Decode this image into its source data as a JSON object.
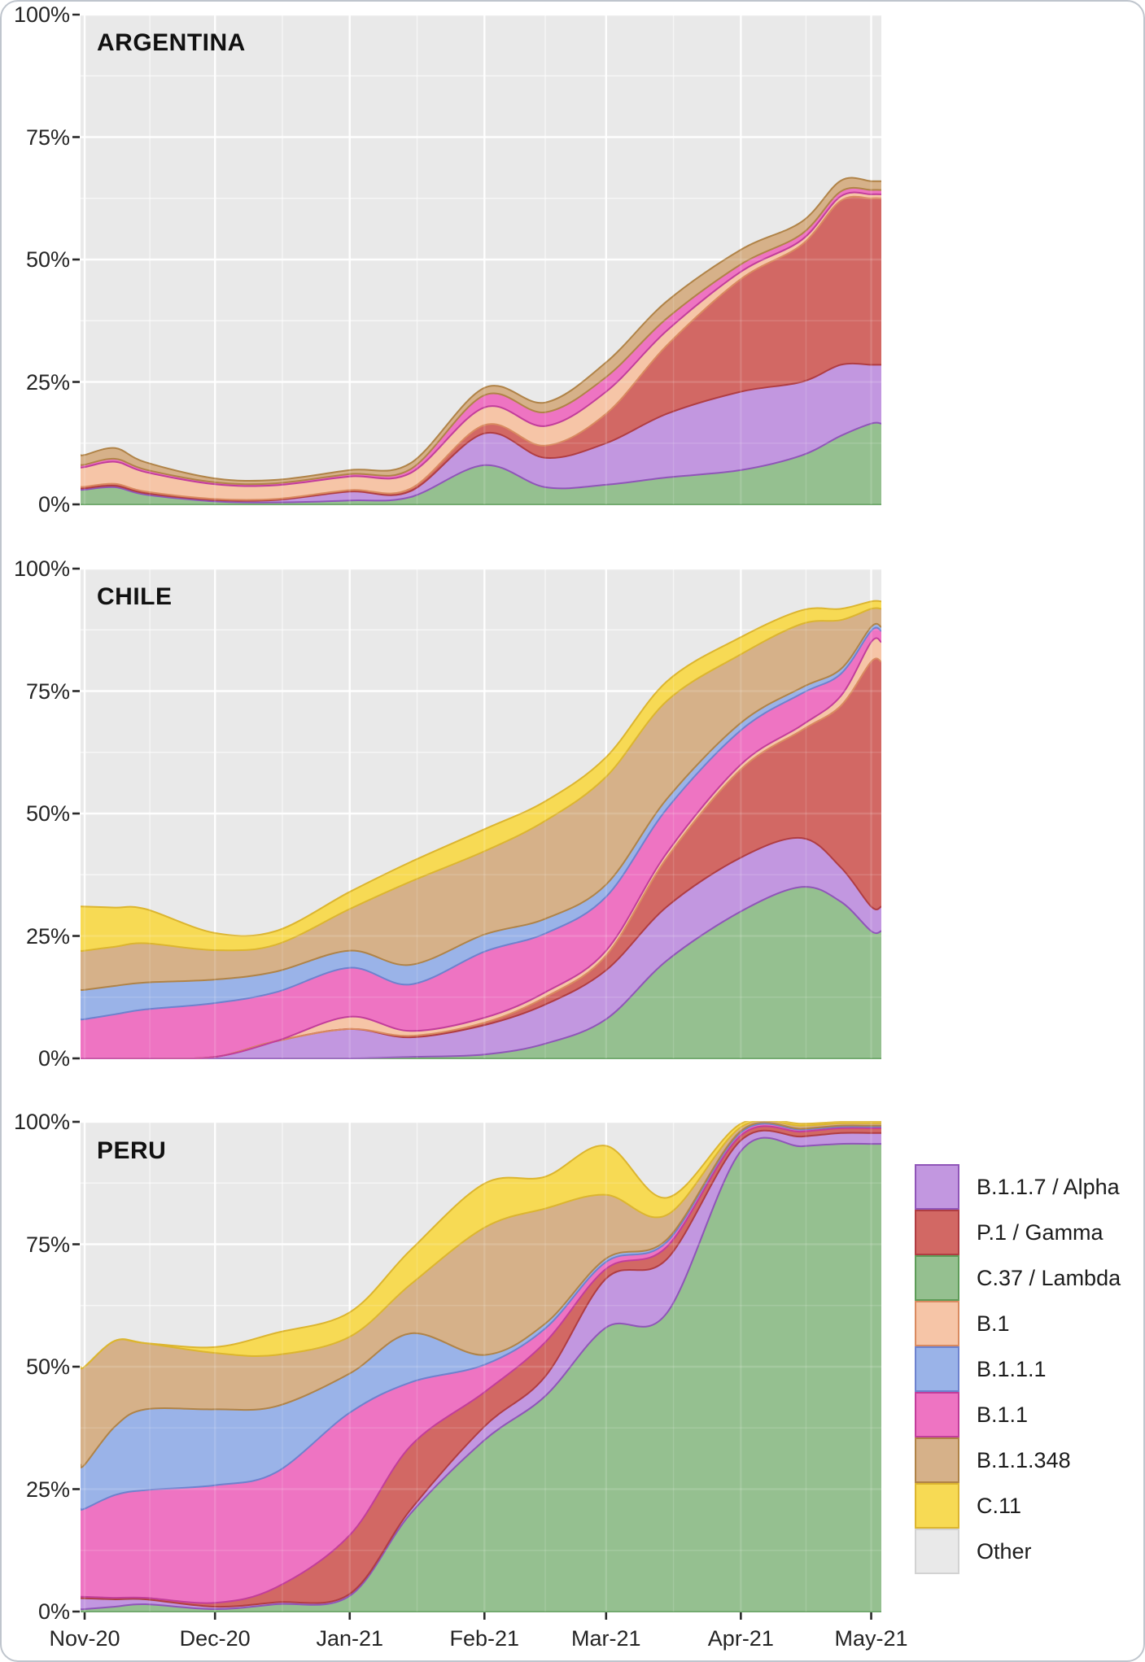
{
  "figure": {
    "kind": "stacked-area-proportion-chart",
    "description": "SARS-CoV-2 variant frequency over time in three countries"
  },
  "chart_data": {
    "type": "area",
    "stacked": true,
    "y_unit": "percent",
    "ylim": [
      0,
      100
    ],
    "x": {
      "dates": [
        "Nov-01",
        "Nov-08",
        "Nov-15",
        "Dec-01",
        "Dec-15",
        "Jan-01",
        "Jan-15",
        "Feb-01",
        "Feb-15",
        "Mar-01",
        "Mar-15",
        "Apr-01",
        "Apr-15",
        "Apr-24",
        "May-01"
      ],
      "days_from_nov1": [
        0,
        7,
        14,
        30,
        44,
        61,
        75,
        92,
        106,
        120,
        134,
        151,
        165,
        174,
        181
      ]
    },
    "x_ticks": [
      {
        "label": "Nov-20",
        "day": 0
      },
      {
        "label": "Dec-20",
        "day": 30
      },
      {
        "label": "Jan-21",
        "day": 61
      },
      {
        "label": "Feb-21",
        "day": 92
      },
      {
        "label": "Mar-21",
        "day": 120
      },
      {
        "label": "Apr-21",
        "day": 151
      },
      {
        "label": "May-21",
        "day": 181
      }
    ],
    "y_ticks": [
      {
        "label": "100%",
        "value": 100
      },
      {
        "label": "75%",
        "value": 75
      },
      {
        "label": "50%",
        "value": 50
      },
      {
        "label": "25%",
        "value": 25
      },
      {
        "label": "0%",
        "value": 0
      }
    ],
    "stack_order_bottom_to_top": [
      "lambda",
      "alpha",
      "gamma",
      "b1",
      "b11",
      "b111",
      "b11348",
      "c11"
    ],
    "variants": {
      "alpha": {
        "label": "B.1.1.7 / Alpha",
        "fill": "#c297e0",
        "stroke": "#8f55b8"
      },
      "gamma": {
        "label": "P.1 / Gamma",
        "fill": "#d26864",
        "stroke": "#b03d42"
      },
      "lambda": {
        "label": "C.37 / Lambda",
        "fill": "#95c090",
        "stroke": "#5d9c58"
      },
      "b1": {
        "label": "B.1",
        "fill": "#f6c5a7",
        "stroke": "#d98a60"
      },
      "b111": {
        "label": "B.1.1.1",
        "fill": "#9ab3e8",
        "stroke": "#6d82ce"
      },
      "b11": {
        "label": "B.1.1",
        "fill": "#ee74c2",
        "stroke": "#c23d9b"
      },
      "b11348": {
        "label": "B.1.1.348",
        "fill": "#d6b189",
        "stroke": "#b08347"
      },
      "c11": {
        "label": "C.11",
        "fill": "#f7da54",
        "stroke": "#dcb52f"
      },
      "other": {
        "label": "Other",
        "fill": "#e9e9e9",
        "stroke": "#d2d2d2"
      }
    },
    "legend_order": [
      "alpha",
      "gamma",
      "lambda",
      "b1",
      "b111",
      "b11",
      "b11348",
      "c11",
      "other"
    ],
    "other_is_remainder_to_100": true,
    "panels": [
      {
        "country": "ARGENTINA",
        "series": {
          "lambda": [
            3,
            3.5,
            2,
            0.6,
            0.4,
            0.8,
            1.5,
            8,
            3.5,
            4,
            5.5,
            7,
            10,
            14,
            16.5
          ],
          "alpha": [
            0.3,
            0.3,
            0.3,
            0.3,
            0.5,
            1.8,
            1.2,
            6.5,
            6,
            8.5,
            13,
            16,
            15,
            14.5,
            12
          ],
          "gamma": [
            0.3,
            0.4,
            0.3,
            0.2,
            0.2,
            0.3,
            0.5,
            1.7,
            2.5,
            6,
            14,
            23,
            28,
            33.5,
            34
          ],
          "b1": [
            4,
            4.5,
            4,
            3,
            2.8,
            2.8,
            3.2,
            3.6,
            4,
            4.5,
            3,
            1.5,
            1,
            0.9,
            0.8
          ],
          "b11": [
            0.5,
            0.6,
            0.5,
            0.4,
            0.4,
            0.5,
            0.8,
            2.5,
            2.8,
            3,
            2.5,
            1.5,
            1.2,
            1,
            0.9
          ],
          "b111": [
            0,
            0,
            0,
            0,
            0,
            0,
            0,
            0,
            0,
            0,
            0,
            0,
            0,
            0,
            0
          ],
          "b11348": [
            2,
            2.2,
            1.5,
            0.8,
            0.7,
            0.8,
            1.2,
            1.5,
            2,
            3,
            3.5,
            3,
            2.5,
            2.2,
            1.8
          ],
          "c11": [
            0,
            0,
            0,
            0,
            0,
            0,
            0,
            0,
            0,
            0,
            0,
            0,
            0,
            0,
            0
          ]
        }
      },
      {
        "country": "CHILE",
        "series": {
          "lambda": [
            0,
            0,
            0,
            0,
            0,
            0,
            0.3,
            0.8,
            3,
            8,
            20,
            30,
            35,
            32,
            26
          ],
          "alpha": [
            0,
            0,
            0,
            0.3,
            3.5,
            6,
            4,
            6,
            8,
            10,
            11,
            11,
            10,
            7,
            5
          ],
          "gamma": [
            0,
            0,
            0,
            0,
            0,
            0,
            0.3,
            0.5,
            1.5,
            3,
            10,
            18,
            22,
            33,
            50
          ],
          "b1": [
            0,
            0,
            0,
            0,
            0,
            2.5,
            1,
            1,
            1,
            1,
            1,
            1,
            1,
            2,
            4
          ],
          "b11": [
            8,
            9,
            10,
            11,
            10,
            10,
            9.5,
            13.5,
            12,
            11,
            9,
            7,
            6.5,
            4.5,
            2.3
          ],
          "b111": [
            6,
            5.8,
            5.5,
            4.8,
            4.2,
            3.5,
            4,
            3.5,
            3,
            2.5,
            2,
            1.5,
            1.2,
            1,
            0.8
          ],
          "b11348": [
            8,
            8,
            8,
            6,
            5.5,
            8.5,
            17,
            17,
            20,
            22,
            20,
            14,
            13,
            10,
            3.7
          ],
          "c11": [
            9,
            8,
            7,
            3.5,
            2.8,
            3.5,
            4,
            4.5,
            4,
            4,
            4,
            3.5,
            2.8,
            2.3,
            1.5
          ]
        }
      },
      {
        "country": "PERU",
        "series": {
          "lambda": [
            0.5,
            1,
            1.5,
            0.5,
            1.5,
            3.2,
            20,
            35,
            44,
            58,
            61,
            94,
            95,
            95.5,
            95.5
          ],
          "alpha": [
            2.2,
            1.5,
            1,
            0.5,
            0.4,
            0.4,
            0.8,
            2.8,
            4,
            10,
            11,
            2.2,
            2,
            2.2,
            2.2
          ],
          "gamma": [
            0.3,
            0.3,
            0.3,
            0.8,
            3,
            12,
            13,
            7,
            7,
            2,
            2.5,
            1,
            1,
            1,
            1
          ],
          "b1": [
            0,
            0,
            0,
            0,
            0,
            0,
            0,
            0,
            0,
            0,
            0,
            0,
            0,
            0,
            0
          ],
          "b11": [
            18,
            21,
            22,
            24,
            23.5,
            25,
            13,
            5.6,
            2.8,
            1.4,
            1,
            0.6,
            0.4,
            0.3,
            0.3
          ],
          "b111": [
            9,
            14,
            16.5,
            15.5,
            13.5,
            8,
            10,
            2,
            1,
            0.7,
            0.5,
            0.3,
            0.2,
            0.2,
            0.2
          ],
          "b11348": [
            20,
            17.5,
            13.5,
            11.5,
            10.5,
            7.5,
            10,
            26,
            23.5,
            13,
            5,
            0.8,
            0.6,
            0.5,
            0.5
          ],
          "c11": [
            0,
            0,
            0,
            1.2,
            4.5,
            5,
            7,
            9,
            6.5,
            10,
            3.5,
            0.7,
            0.4,
            0.3,
            0.3
          ]
        }
      }
    ]
  },
  "style": {
    "panel_background": "#e9e9e9",
    "grid_major": "rgba(255,255,255,0.95)",
    "grid_minor": "rgba(255,255,255,0.55)",
    "grid_overlay": "rgba(255,255,255,0.14)",
    "tick_color": "#2a2a2a",
    "text_color": "#242424"
  }
}
